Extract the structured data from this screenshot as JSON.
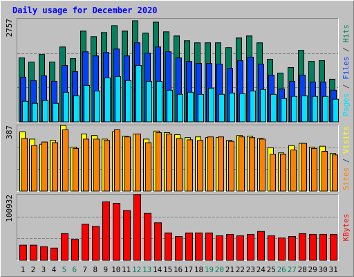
{
  "title": "Daily usage for December 2020",
  "legend_separator": "/",
  "categories": [
    "1",
    "2",
    "3",
    "4",
    "5",
    "6",
    "7",
    "8",
    "9",
    "10",
    "11",
    "12",
    "13",
    "14",
    "15",
    "16",
    "17",
    "18",
    "19",
    "20",
    "21",
    "22",
    "23",
    "24",
    "25",
    "26",
    "27",
    "28",
    "29",
    "30",
    "31"
  ],
  "category_colors": [
    "#000000",
    "#000000",
    "#000000",
    "#000000",
    "#00805c",
    "#00805c",
    "#000000",
    "#000000",
    "#000000",
    "#000000",
    "#000000",
    "#00805c",
    "#00805c",
    "#000000",
    "#000000",
    "#000000",
    "#000000",
    "#000000",
    "#00805c",
    "#00805c",
    "#000000",
    "#000000",
    "#000000",
    "#000000",
    "#000000",
    "#00805c",
    "#00805c",
    "#000000",
    "#000000",
    "#000000",
    "#000000"
  ],
  "chart_data": [
    {
      "type": "bar",
      "ylim": [
        0,
        2757
      ],
      "yticks": [
        2757
      ],
      "series": [
        {
          "name": "Hits",
          "color": "#00805c",
          "values": [
            1709,
            1599,
            1801,
            1599,
            2003,
            1691,
            2426,
            2279,
            2389,
            2573,
            2426,
            2702,
            2371,
            2665,
            2408,
            2297,
            2169,
            2114,
            2114,
            2114,
            1985,
            2242,
            2297,
            2114,
            1673,
            1305,
            1452,
            1911,
            1617,
            1636,
            1140
          ]
        },
        {
          "name": "Files",
          "color": "#0040ff",
          "values": [
            1195,
            1103,
            1231,
            1084,
            1507,
            1342,
            1875,
            1764,
            1856,
            1948,
            1764,
            2114,
            1838,
            2003,
            1875,
            1709,
            1617,
            1562,
            1562,
            1544,
            1434,
            1636,
            1728,
            1544,
            1250,
            882,
            1084,
            1250,
            1066,
            1066,
            845
          ]
        },
        {
          "name": "Pages",
          "color": "#00e0ff",
          "values": [
            551,
            496,
            570,
            496,
            790,
            698,
            974,
            827,
            1176,
            1213,
            1103,
            1507,
            1084,
            1084,
            845,
            735,
            790,
            735,
            901,
            735,
            772,
            754,
            827,
            864,
            735,
            625,
            680,
            698,
            680,
            680,
            607
          ]
        }
      ]
    },
    {
      "type": "bar",
      "ylim": [
        0,
        387
      ],
      "yticks": [
        387
      ],
      "series": [
        {
          "name": "Visits",
          "color": "#ffff00",
          "values": [
            349,
            306,
            276,
            298,
            387,
            259,
            336,
            327,
            306,
            349,
            323,
            336,
            306,
            353,
            344,
            332,
            315,
            319,
            315,
            315,
            298,
            327,
            323,
            310,
            255,
            225,
            268,
            281,
            259,
            264,
            221
          ]
        },
        {
          "name": "Sites",
          "color": "#ff8000",
          "values": [
            310,
            268,
            289,
            285,
            361,
            251,
            306,
            306,
            298,
            361,
            319,
            336,
            285,
            344,
            336,
            310,
            302,
            298,
            319,
            319,
            293,
            319,
            315,
            306,
            217,
            217,
            242,
            281,
            251,
            234,
            213
          ]
        }
      ]
    },
    {
      "type": "bar",
      "ylim": [
        0,
        100932
      ],
      "yticks": [
        100932
      ],
      "series": [
        {
          "name": "KBytes",
          "color": "#ff0000",
          "values": [
            23289,
            23289,
            21071,
            18853,
            41033,
            32161,
            55450,
            52123,
            89829,
            87611,
            76521,
            100932,
            72085,
            57668,
            42142,
            36597,
            42142,
            42142,
            42142,
            37706,
            39924,
            37706,
            39924,
            44360,
            37706,
            34379,
            36597,
            41033,
            39924,
            39924,
            39924
          ]
        }
      ]
    }
  ]
}
